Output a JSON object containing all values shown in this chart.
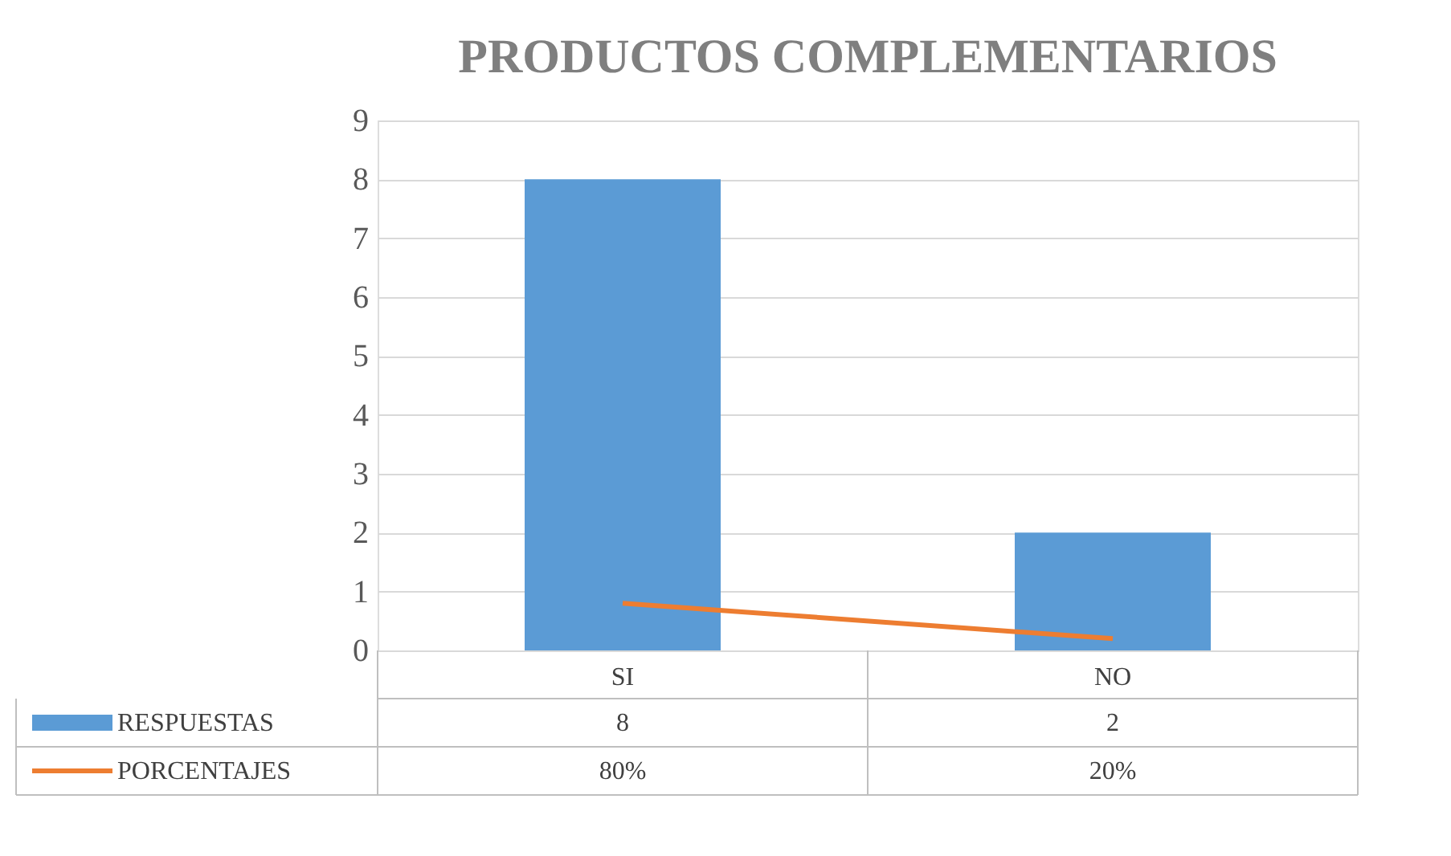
{
  "chart_data": {
    "type": "bar",
    "title": "PRODUCTOS COMPLEMENTARIOS",
    "categories": [
      "SI",
      "NO"
    ],
    "series": [
      {
        "name": "RESPUESTAS",
        "color": "#5b9bd5",
        "values": [
          8,
          2
        ],
        "value_labels": [
          "8",
          "2"
        ]
      },
      {
        "name": "PORCENTAJES",
        "type": "line",
        "color": "#ed7d31",
        "values": [
          0.8,
          0.2
        ],
        "value_labels": [
          "80%",
          "20%"
        ]
      }
    ],
    "ylim": [
      0,
      9
    ],
    "yticks": [
      0,
      1,
      2,
      3,
      4,
      5,
      6,
      7,
      8,
      9
    ],
    "grid": "y",
    "legend": "bottom"
  }
}
